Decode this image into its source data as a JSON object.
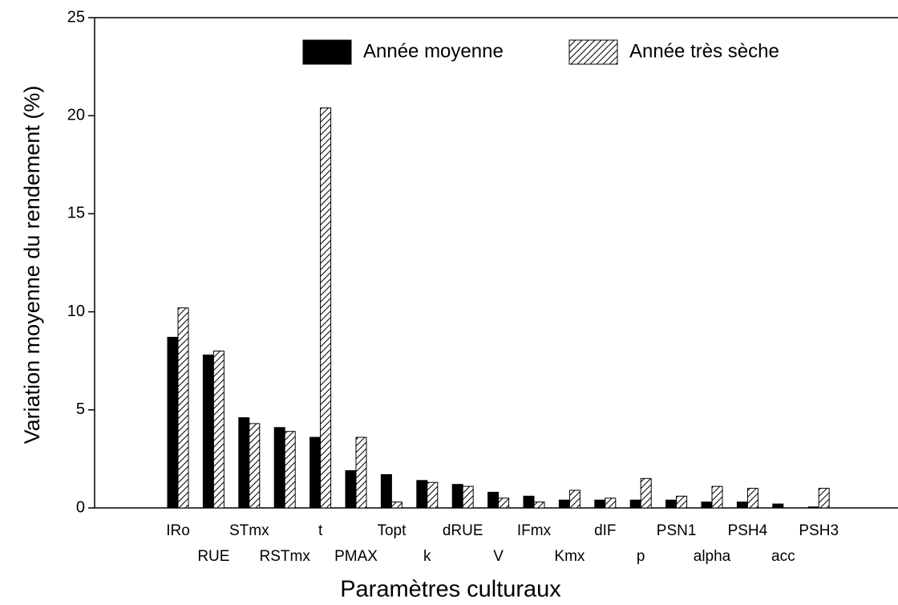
{
  "chart_data": {
    "type": "bar",
    "y_label": "Variation moyenne du rendement (%)",
    "x_label": "Paramètres culturaux",
    "categories": [
      "IRo",
      "RUE",
      "STmx",
      "RSTmx",
      "t",
      "PMAX",
      "Topt",
      "k",
      "dRUE",
      "V",
      "IFmx",
      "Kmx",
      "dIF",
      "p",
      "PSN1",
      "alpha",
      "PSH4",
      "acc",
      "PSH3"
    ],
    "series": [
      {
        "name": "Année moyenne",
        "color": "#000000",
        "pattern": "solid",
        "values": [
          8.7,
          7.8,
          4.6,
          4.1,
          3.6,
          1.9,
          1.7,
          1.4,
          1.2,
          0.8,
          0.6,
          0.4,
          0.4,
          0.4,
          0.4,
          0.3,
          0.3,
          0.2,
          0.05
        ]
      },
      {
        "name": "Année très sèche",
        "color": "#000000",
        "pattern": "hatched",
        "values": [
          10.2,
          8.0,
          4.3,
          3.9,
          20.4,
          3.6,
          0.3,
          1.3,
          1.1,
          0.5,
          0.3,
          0.9,
          0.5,
          1.5,
          0.6,
          1.1,
          1.0,
          0,
          1.0
        ]
      }
    ],
    "ylim": [
      0,
      25
    ],
    "yticks": [
      0,
      5,
      10,
      15,
      20,
      25
    ]
  }
}
